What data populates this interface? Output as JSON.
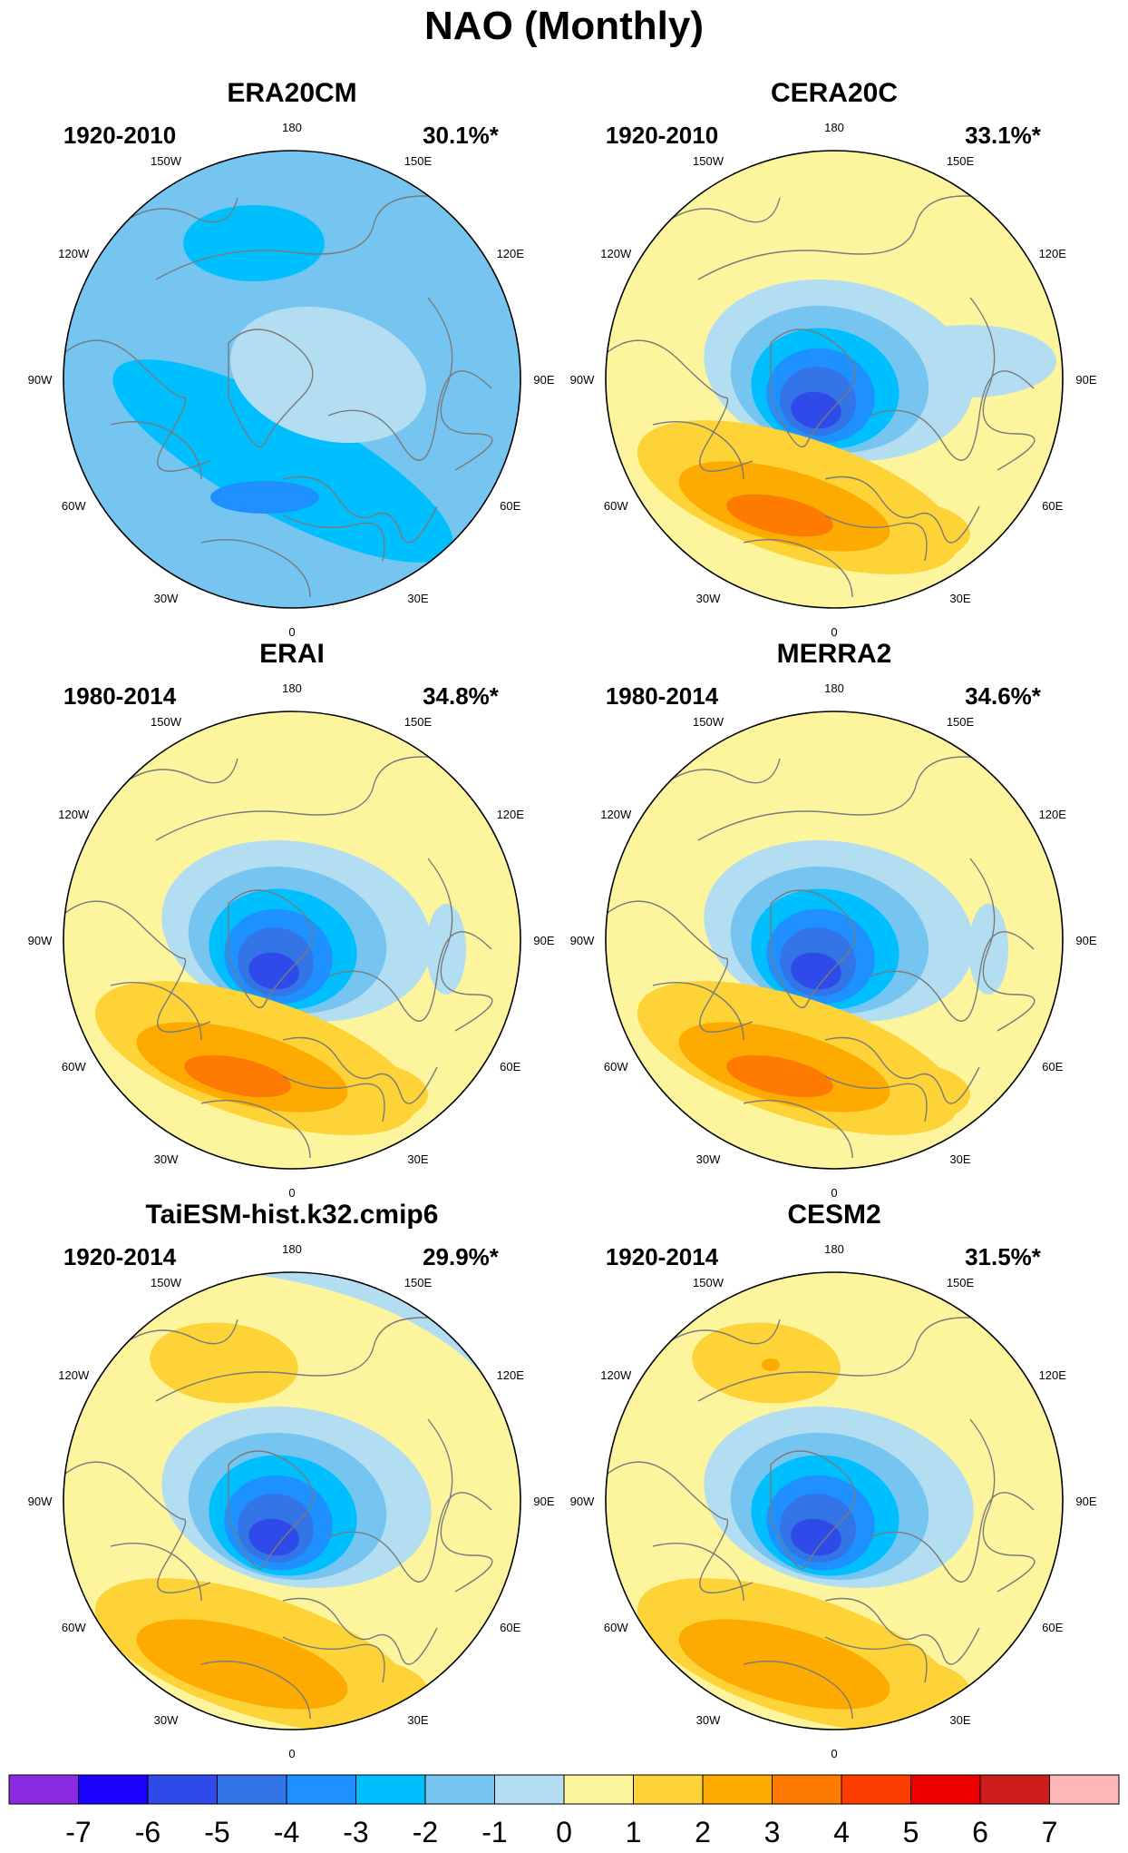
{
  "main_title": "NAO (Monthly)",
  "panels": [
    {
      "title": "ERA20CM",
      "period": "1920-2010",
      "variance": "30.1%*",
      "pattern": "era20cm"
    },
    {
      "title": "CERA20C",
      "period": "1920-2010",
      "variance": "33.1%*",
      "pattern": "cera"
    },
    {
      "title": "ERAI",
      "period": "1980-2014",
      "variance": "34.8%*",
      "pattern": "erai"
    },
    {
      "title": "MERRA2",
      "period": "1980-2014",
      "variance": "34.6%*",
      "pattern": "merra"
    },
    {
      "title": "TaiESM-hist.k32.cmip6",
      "period": "1920-2014",
      "variance": "29.9%*",
      "pattern": "taiesm"
    },
    {
      "title": "CESM2",
      "period": "1920-2014",
      "variance": "31.5%*",
      "pattern": "cesm"
    }
  ],
  "lon_labels": [
    "180",
    "150E",
    "120E",
    "90E",
    "60E",
    "30E",
    "0",
    "30W",
    "60W",
    "90W",
    "120W",
    "150W"
  ],
  "colorbar": {
    "labels": [
      "-7",
      "-6",
      "-5",
      "-4",
      "-3",
      "-2",
      "-1",
      "0",
      "1",
      "2",
      "3",
      "4",
      "5",
      "6",
      "7"
    ],
    "colors": [
      "#8a2be2",
      "#1a00ff",
      "#2e4bea",
      "#3374e6",
      "#1e90ff",
      "#00bfff",
      "#75c5f0",
      "#b3def2",
      "#fdf59e",
      "#fdd337",
      "#fdab00",
      "#fd7b00",
      "#fd3c00",
      "#ef0000",
      "#cd1c1c",
      "#ffb6b6"
    ]
  }
}
